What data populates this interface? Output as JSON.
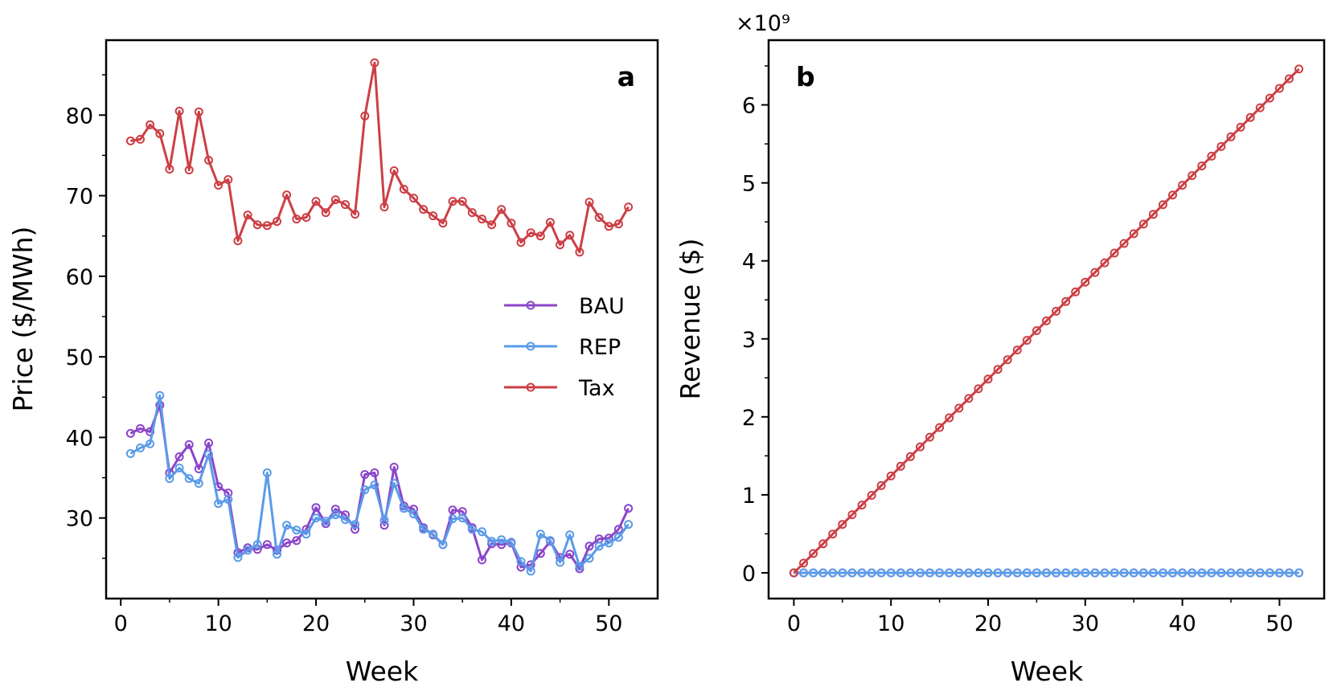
{
  "colors": {
    "BAU": "#8b45c9",
    "REP": "#5a9be8",
    "Tax": "#cc3f45"
  },
  "chart_data": [
    {
      "type": "line",
      "panel_label": "a",
      "xlabel": "Week",
      "ylabel": "Price ($/MWh)",
      "xlim": [
        -1.5,
        55
      ],
      "ylim": [
        20,
        89.3
      ],
      "xticks": [
        0,
        10,
        20,
        30,
        40,
        50
      ],
      "yticks": [
        30,
        40,
        50,
        60,
        70,
        80
      ],
      "grid": false,
      "legend": "center-right",
      "x": [
        1,
        2,
        3,
        4,
        5,
        6,
        7,
        8,
        9,
        10,
        11,
        12,
        13,
        14,
        15,
        16,
        17,
        18,
        19,
        20,
        21,
        22,
        23,
        24,
        25,
        26,
        27,
        28,
        29,
        30,
        31,
        32,
        33,
        34,
        35,
        36,
        37,
        38,
        39,
        40,
        41,
        42,
        43,
        44,
        45,
        46,
        47,
        48,
        49,
        50,
        51,
        52
      ],
      "series": [
        {
          "name": "BAU",
          "values": [
            40.5,
            41.1,
            40.7,
            44.0,
            35.6,
            37.6,
            39.1,
            36.1,
            39.3,
            33.9,
            33.1,
            25.7,
            26.3,
            26.1,
            26.7,
            26.0,
            26.9,
            27.2,
            28.6,
            31.3,
            29.3,
            31.1,
            30.4,
            28.6,
            35.4,
            35.6,
            29.1,
            36.3,
            31.5,
            31.1,
            28.8,
            27.9,
            26.7,
            31.0,
            30.8,
            28.8,
            24.8,
            26.8,
            26.7,
            26.9,
            23.9,
            24.2,
            25.6,
            27.1,
            25.1,
            25.5,
            23.7,
            26.5,
            27.4,
            27.5,
            28.6,
            31.2
          ]
        },
        {
          "name": "REP",
          "values": [
            38.0,
            38.7,
            39.2,
            45.2,
            34.9,
            36.2,
            34.9,
            34.3,
            37.9,
            31.8,
            32.3,
            25.1,
            26.0,
            26.7,
            35.6,
            25.5,
            29.1,
            28.5,
            28.0,
            30.0,
            29.6,
            30.4,
            29.8,
            29.2,
            33.5,
            34.1,
            29.7,
            34.3,
            31.2,
            30.5,
            28.6,
            28.0,
            26.7,
            29.9,
            30.0,
            28.6,
            28.3,
            27.1,
            27.3,
            27.0,
            24.6,
            23.4,
            28.0,
            27.2,
            24.5,
            27.9,
            24.0,
            25.0,
            26.5,
            26.9,
            27.6,
            29.2
          ]
        },
        {
          "name": "Tax",
          "values": [
            76.8,
            77.0,
            78.8,
            77.7,
            73.3,
            80.5,
            73.2,
            80.4,
            74.4,
            71.3,
            72.0,
            64.4,
            67.6,
            66.4,
            66.3,
            66.8,
            70.1,
            67.1,
            67.3,
            69.3,
            67.9,
            69.5,
            68.9,
            67.7,
            79.9,
            86.5,
            68.6,
            73.1,
            70.8,
            69.7,
            68.3,
            67.5,
            66.6,
            69.3,
            69.3,
            67.9,
            67.1,
            66.4,
            68.3,
            66.6,
            64.2,
            65.4,
            65.0,
            66.7,
            63.9,
            65.1,
            63.0,
            69.2,
            67.3,
            66.2,
            66.5,
            68.6
          ]
        }
      ]
    },
    {
      "type": "line",
      "panel_label": "b",
      "xlabel": "Week",
      "ylabel": "Revenue ($)",
      "y_offset_label": "×10⁹",
      "y_scale": 1000000000.0,
      "xlim": [
        -2.6,
        54.6
      ],
      "ylim": [
        -0.33,
        6.83
      ],
      "xticks": [
        0,
        10,
        20,
        30,
        40,
        50
      ],
      "yticks": [
        0,
        1,
        2,
        3,
        4,
        5,
        6
      ],
      "grid": false,
      "x_start": 0,
      "x_end": 52,
      "series": [
        {
          "name": "BAU",
          "start": 0,
          "end": 0
        },
        {
          "name": "REP",
          "start": 0,
          "end": 0
        },
        {
          "name": "Tax",
          "start": 0,
          "end": 6.46
        }
      ]
    }
  ]
}
